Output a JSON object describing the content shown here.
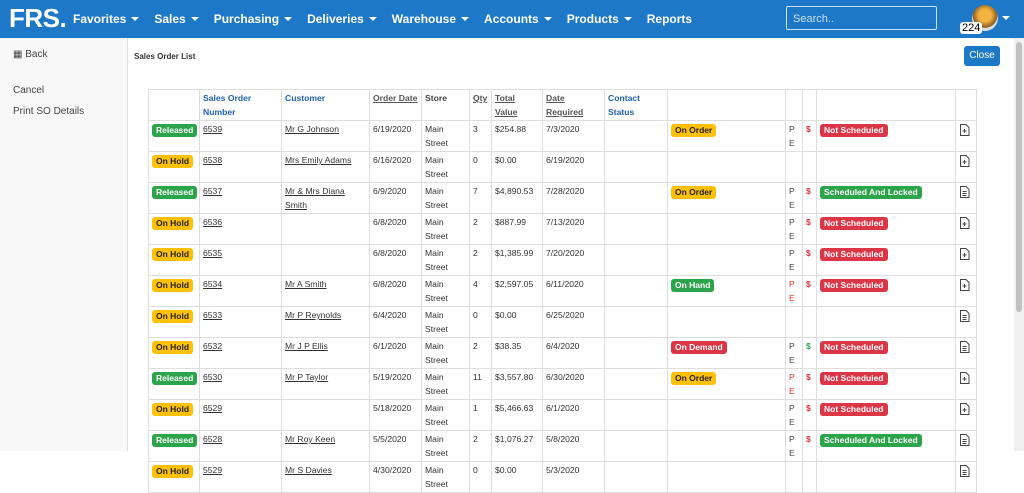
{
  "navbar": {
    "brand": "FRS.",
    "menu": [
      {
        "label": "Favorites",
        "dropdown": true
      },
      {
        "label": "Sales",
        "dropdown": true
      },
      {
        "label": "Purchasing",
        "dropdown": true
      },
      {
        "label": "Deliveries",
        "dropdown": true
      },
      {
        "label": "Warehouse",
        "dropdown": true
      },
      {
        "label": "Accounts",
        "dropdown": true
      },
      {
        "label": "Products",
        "dropdown": true
      },
      {
        "label": "Reports",
        "dropdown": false
      }
    ],
    "search_placeholder": "Search..",
    "badge": "224"
  },
  "sidebar": {
    "back": "Back",
    "links": [
      "Cancel",
      "Print SO Details"
    ]
  },
  "page_title": "Sales Order List",
  "close_button": "Close",
  "table": {
    "headers": [
      "Sales Order Number",
      "Customer",
      "Order Date",
      "Store",
      "Qty",
      "Total Value",
      "Date Required",
      "Contact Status"
    ],
    "rows": [
      {
        "status": {
          "text": "Released",
          "color": "green"
        },
        "order": "6539",
        "customer": "Mr G Johnson",
        "date": "6/19/2020",
        "store": "Main Street",
        "qty": 3,
        "total": "$254.88",
        "required": "7/3/2020",
        "stock": {
          "text": "On Order",
          "color": "yellow"
        },
        "p": "P",
        "e": "E",
        "pe_color": "dark",
        "flag": {
          "text": "$",
          "color": "red"
        },
        "schedule": {
          "text": "Not Scheduled",
          "color": "red"
        },
        "icon": "add"
      },
      {
        "status": {
          "text": "On Hold",
          "color": "yellow"
        },
        "order": "6538",
        "customer": "Mrs Emily Adams",
        "date": "6/16/2020",
        "store": "Main Street",
        "qty": 0,
        "total": "$0.00",
        "required": "6/19/2020",
        "stock": null,
        "p": null,
        "e": null,
        "pe_color": null,
        "flag": null,
        "schedule": null,
        "icon": "add"
      },
      {
        "status": {
          "text": "Released",
          "color": "green"
        },
        "order": "6537",
        "customer": "Mr & Mrs Diana Smith",
        "date": "6/9/2020",
        "store": "Main Street",
        "qty": 7,
        "total": "$4,890.53",
        "required": "7/28/2020",
        "stock": {
          "text": "On Order",
          "color": "yellow"
        },
        "p": "P",
        "e": "E",
        "pe_color": "dark",
        "flag": {
          "text": "$",
          "color": "red"
        },
        "schedule": {
          "text": "Scheduled And Locked",
          "color": "green"
        },
        "icon": "doc"
      },
      {
        "status": {
          "text": "On Hold",
          "color": "yellow"
        },
        "order": "6536",
        "customer": null,
        "date": "6/8/2020",
        "store": "Main Street",
        "qty": 2,
        "total": "$887.99",
        "required": "7/13/2020",
        "stock": null,
        "p": "P",
        "e": "E",
        "pe_color": "dark",
        "flag": {
          "text": "$",
          "color": "red"
        },
        "schedule": {
          "text": "Not Scheduled",
          "color": "red"
        },
        "icon": "add"
      },
      {
        "status": {
          "text": "On Hold",
          "color": "yellow"
        },
        "order": "6535",
        "customer": null,
        "date": "6/8/2020",
        "store": "Main Street",
        "qty": 2,
        "total": "$1,385.99",
        "required": "7/20/2020",
        "stock": null,
        "p": "P",
        "e": "E",
        "pe_color": "dark",
        "flag": {
          "text": "$",
          "color": "red"
        },
        "schedule": {
          "text": "Not Scheduled",
          "color": "red"
        },
        "icon": "add"
      },
      {
        "status": {
          "text": "On Hold",
          "color": "yellow"
        },
        "order": "6534",
        "customer": "Mr A Smith",
        "date": "6/8/2020",
        "store": "Main Street",
        "qty": 4,
        "total": "$2,597.05",
        "required": "6/11/2020",
        "stock": {
          "text": "On Hand",
          "color": "green"
        },
        "p": "P",
        "e": "E",
        "pe_color": "red",
        "flag": {
          "text": "$",
          "color": "red"
        },
        "schedule": {
          "text": "Not Scheduled",
          "color": "red"
        },
        "icon": "add"
      },
      {
        "status": {
          "text": "On Hold",
          "color": "yellow"
        },
        "order": "6533",
        "customer": "Mr P Reynolds",
        "date": "6/4/2020",
        "store": "Main Street",
        "qty": 0,
        "total": "$0.00",
        "required": "6/25/2020",
        "stock": null,
        "p": null,
        "e": null,
        "pe_color": null,
        "flag": null,
        "schedule": null,
        "icon": "doc"
      },
      {
        "status": {
          "text": "On Hold",
          "color": "yellow"
        },
        "order": "6532",
        "customer": "Mr J P Ellis",
        "date": "6/1/2020",
        "store": "Main Street",
        "qty": 2,
        "total": "$38.35",
        "required": "6/4/2020",
        "stock": {
          "text": "On Demand",
          "color": "red"
        },
        "p": "P",
        "e": "E",
        "pe_color": "dark",
        "flag": {
          "text": "$",
          "color": "green"
        },
        "schedule": {
          "text": "Not Scheduled",
          "color": "red"
        },
        "icon": "doc"
      },
      {
        "status": {
          "text": "Released",
          "color": "green"
        },
        "order": "6530",
        "customer": "Mr P Taylor",
        "date": "5/19/2020",
        "store": "Main Street",
        "qty": 11,
        "total": "$3,557.80",
        "required": "6/30/2020",
        "stock": {
          "text": "On Order",
          "color": "yellow"
        },
        "p": "P",
        "e": "E",
        "pe_color": "red",
        "flag": {
          "text": "$",
          "color": "red"
        },
        "schedule": {
          "text": "Not Scheduled",
          "color": "red"
        },
        "icon": "add"
      },
      {
        "status": {
          "text": "On Hold",
          "color": "yellow"
        },
        "order": "6529",
        "customer": null,
        "date": "5/18/2020",
        "store": "Main Street",
        "qty": 1,
        "total": "$5,466.63",
        "required": "6/1/2020",
        "stock": null,
        "p": "P",
        "e": "E",
        "pe_color": "dark",
        "flag": {
          "text": "$",
          "color": "red"
        },
        "schedule": {
          "text": "Not Scheduled",
          "color": "red"
        },
        "icon": "add"
      },
      {
        "status": {
          "text": "Released",
          "color": "green"
        },
        "order": "6528",
        "customer": "Mr Roy Keen",
        "date": "5/5/2020",
        "store": "Main Street",
        "qty": 2,
        "total": "$1,076.27",
        "required": "5/8/2020",
        "stock": null,
        "p": "P",
        "e": "E",
        "pe_color": "dark",
        "flag": {
          "text": "$",
          "color": "red"
        },
        "schedule": {
          "text": "Scheduled And Locked",
          "color": "green"
        },
        "icon": "doc"
      },
      {
        "status": {
          "text": "On Hold",
          "color": "yellow"
        },
        "order": "5529",
        "customer": "Mr S Davies",
        "date": "4/30/2020",
        "store": "Main Street",
        "qty": 0,
        "total": "$0.00",
        "required": "5/3/2020",
        "stock": null,
        "p": null,
        "e": null,
        "pe_color": null,
        "flag": null,
        "schedule": null,
        "icon": "doc"
      }
    ]
  }
}
